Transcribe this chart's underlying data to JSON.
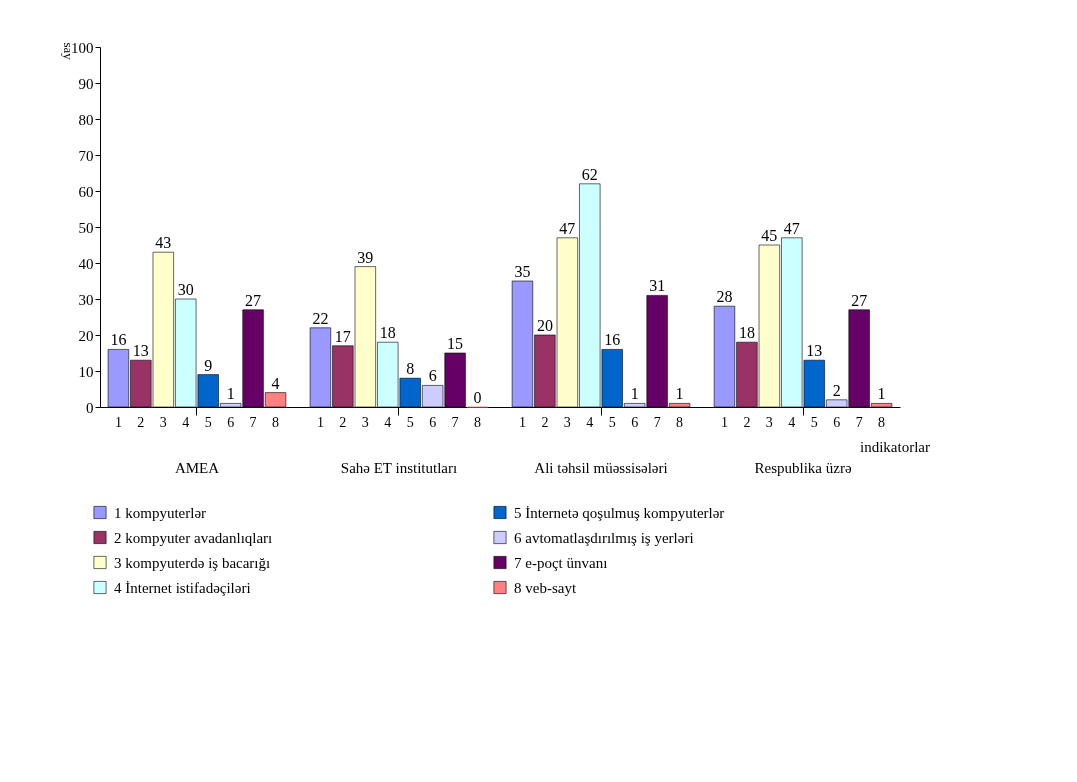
{
  "chart_data": {
    "type": "bar",
    "ylabel": "say",
    "xlabel": "indikatorlar",
    "categories": [
      "AMEA",
      "Sahə ET institutları",
      "Ali təhsil müəssisələri",
      "Respublika üzrə"
    ],
    "series": [
      {
        "name": "1 kompyuterlər",
        "color": "#9999ff",
        "values": [
          16,
          22,
          35,
          28
        ]
      },
      {
        "name": "2 kompyuter avadanlıqları",
        "color": "#993366",
        "values": [
          13,
          17,
          20,
          18
        ]
      },
      {
        "name": "3 kompyuterdə iş bacarığı",
        "color": "#ffffcc",
        "values": [
          43,
          39,
          47,
          45
        ]
      },
      {
        "name": "4 İnternet istifadəçiləri",
        "color": "#ccffff",
        "values": [
          30,
          18,
          62,
          47
        ]
      },
      {
        "name": "5 İnternetə qoşulmuş kompyuterlər",
        "color": "#0066cc",
        "values": [
          9,
          8,
          16,
          13
        ]
      },
      {
        "name": "6 avtomatlaşdırılmış iş yerləri",
        "color": "#ccccff",
        "values": [
          1,
          6,
          1,
          2
        ]
      },
      {
        "name": "7 e-poçt ünvanı",
        "color": "#660066",
        "values": [
          27,
          15,
          31,
          27
        ]
      },
      {
        "name": "8 veb-sayt",
        "color": "#ff8080",
        "values": [
          4,
          0,
          1,
          1
        ]
      }
    ],
    "annotations": [
      "1",
      "2",
      "3",
      "4",
      "5",
      "6",
      "7",
      "8"
    ],
    "ylim": [
      0,
      100
    ],
    "yticks": [
      0,
      10,
      20,
      30,
      40,
      50,
      60,
      70,
      80,
      90,
      100
    ],
    "grid": false,
    "data_labels": true,
    "legend": "bottom"
  }
}
